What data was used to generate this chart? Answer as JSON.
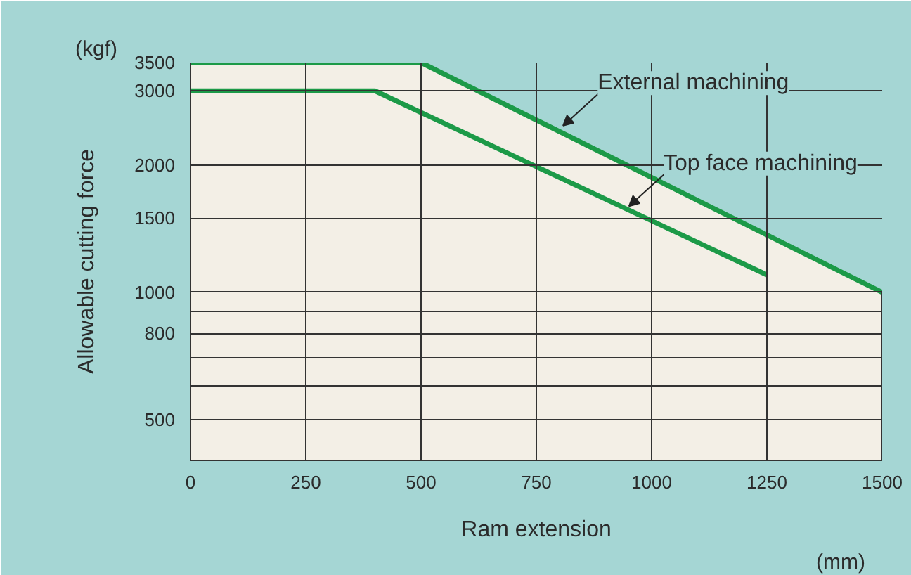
{
  "chart_data": {
    "type": "line",
    "xlabel": "Ram extension",
    "ylabel": "Allowable cutting force",
    "x": [
      0,
      500,
      1500
    ],
    "series": [
      {
        "type": "area",
        "color": "#1c9a48",
        "values": [
          3500,
          3500,
          1000
        ]
      },
      {
        "color": "#1c9a48",
        "x": [
          0,
          400,
          1250
        ],
        "values": [
          3000,
          3000,
          1100
        ]
      }
    ],
    "xlim": [
      0,
      1500
    ],
    "xticks": [
      0,
      250,
      500,
      750,
      1000,
      1250,
      1500
    ],
    "ylim": [
      400,
      3500
    ],
    "log": "y",
    "yticks": [
      {
        "value": 400,
        "label": null
      },
      500,
      {
        "value": 600,
        "label": null
      },
      {
        "value": 700,
        "label": null
      },
      800,
      {
        "value": 900,
        "label": null
      },
      1000,
      1500,
      2000,
      3000,
      3500
    ],
    "grid": true,
    "marker": "none",
    "line_style": "solid",
    "annotations": [
      {
        "text": "External machining",
        "x": 808,
        "y": 2480
      },
      {
        "text": "Top face machining",
        "x": 951,
        "y": 1600
      },
      "(kgf)",
      "(mm)"
    ]
  }
}
